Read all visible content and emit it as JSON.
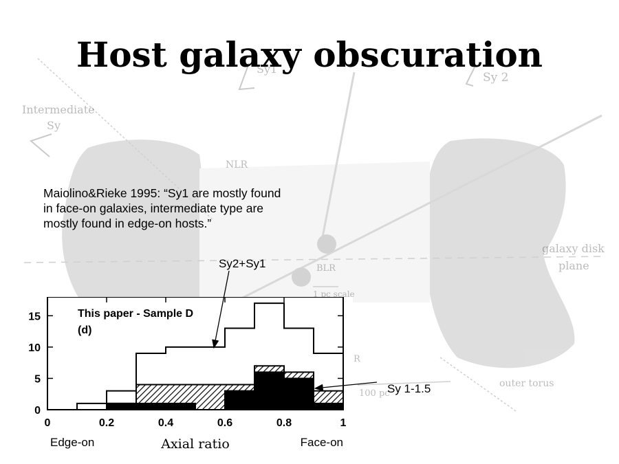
{
  "slide": {
    "title": "Host galaxy obscuration",
    "quote": "Maiolino&Rieke 1995: “Sy1 are mostly found in face-on galaxies, intermediate type are mostly found in edge-on hosts.”",
    "callout_total": "Sy2+Sy1",
    "callout_sy1": "Sy 1-1.5"
  },
  "background_diagram": {
    "labels": {
      "intermediate": "Intermediate",
      "intermediate_sy": "Sy",
      "sy1": "Sy1",
      "sy2": "Sy 2",
      "nlr": "NLR",
      "blr": "BLR",
      "pc1": "1 pc scale",
      "pc100": "100 pc",
      "disk": "galaxy disk",
      "plane": "plane",
      "torus": "outer torus",
      "r": "R"
    }
  },
  "chart_data": {
    "type": "bar",
    "title": "This paper - Sample D",
    "subtitle": "(d)",
    "xlabel": "Axial ratio",
    "x_extreme_labels": {
      "left": "Edge-on",
      "right": "Face-on"
    },
    "xlim": [
      0,
      1
    ],
    "ylim": [
      0,
      18
    ],
    "x_ticks": [
      0,
      0.2,
      0.4,
      0.6,
      0.8,
      1
    ],
    "x_tick_labels": [
      "0",
      "0.2",
      "0.4",
      "0.6",
      "0.8",
      "1"
    ],
    "y_ticks": [
      0,
      5,
      10,
      15
    ],
    "y_tick_labels": [
      "0",
      "5",
      "10",
      "15"
    ],
    "bin_edges": [
      0,
      0.1,
      0.2,
      0.3,
      0.4,
      0.5,
      0.6,
      0.7,
      0.8,
      0.9,
      1.0
    ],
    "series": [
      {
        "values": [
          0,
          1,
          3,
          9,
          10,
          10,
          13,
          17,
          13,
          9
        ],
        "fill": "#ffffff"
      },
      {
        "values": [
          0,
          0,
          1,
          4,
          4,
          4,
          4,
          7,
          6,
          3
        ],
        "fill": "hatch"
      },
      {
        "values": [
          0,
          0,
          1,
          1,
          1,
          0,
          3,
          6,
          5,
          1
        ],
        "fill": "#000000"
      }
    ],
    "grid": false
  }
}
